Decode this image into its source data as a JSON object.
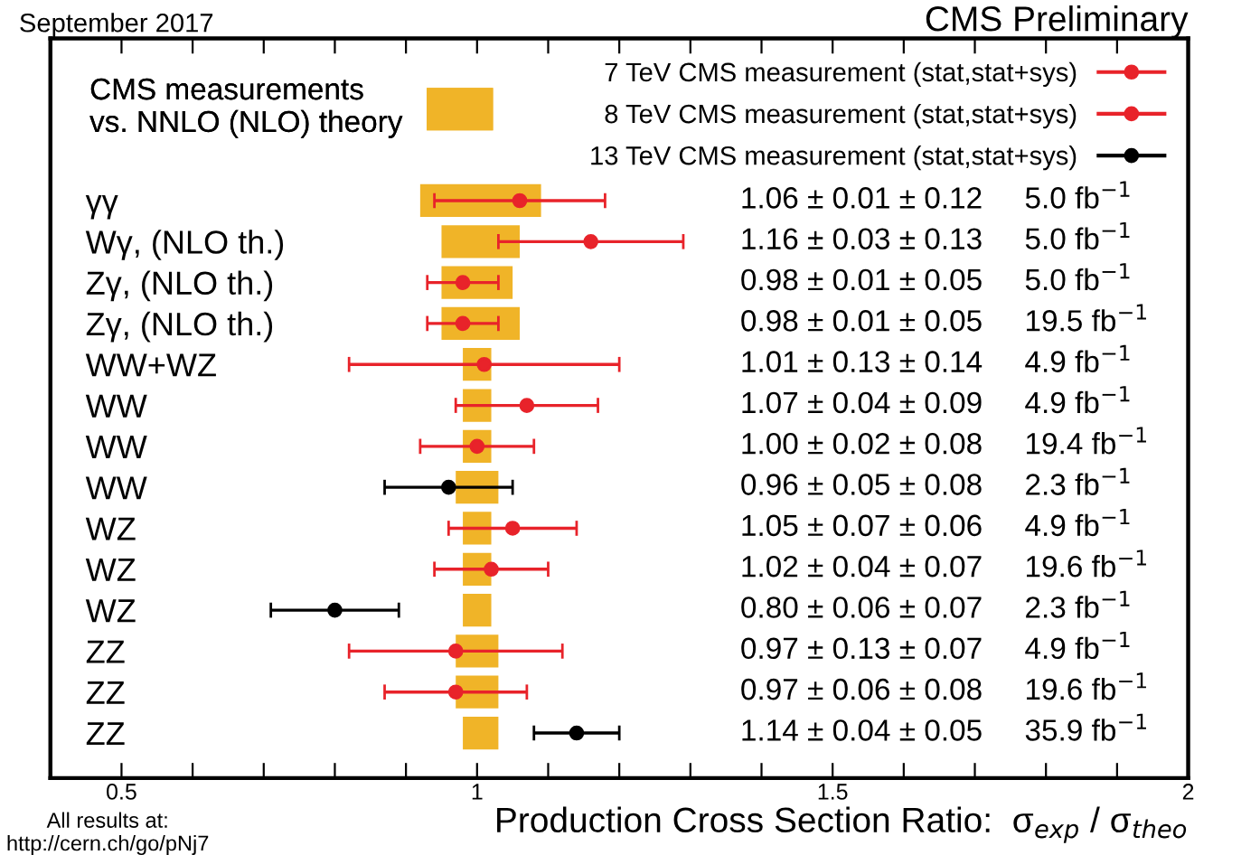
{
  "chart_data": {
    "type": "scatter",
    "orientation": "horizontal",
    "title": "CMS Preliminary",
    "xlabel": "Production Cross Section Ratio:  σ$_{exp}$ / σ$_{theo}$",
    "annotations": [
      "September 2017",
      "All results at:\nhttp://cern.ch/go/pNj7",
      "1.06 ± 0.01 ± 0.12     5.0 fb$^{−1}$",
      "1.16 ± 0.03 ± 0.13     5.0 fb$^{−1}$",
      "0.98 ± 0.01 ± 0.05     5.0 fb$^{−1}$",
      "0.98 ± 0.01 ± 0.05     19.5 fb$^{−1}$",
      "1.01 ± 0.13 ± 0.14     4.9 fb$^{−1}$",
      "1.07 ± 0.04 ± 0.09     4.9 fb$^{−1}$",
      "1.00 ± 0.02 ± 0.08     19.4 fb$^{−1}$",
      "0.96 ± 0.05 ± 0.08     2.3 fb$^{−1}$",
      "1.05 ± 0.07 ± 0.06     4.9 fb$^{−1}$",
      "1.02 ± 0.04 ± 0.07     19.6 fb$^{−1}$",
      "0.80 ± 0.06 ± 0.07     2.3 fb$^{−1}$",
      "0.97 ± 0.13 ± 0.07     4.9 fb$^{−1}$",
      "0.97 ± 0.06 ± 0.08     19.6 fb$^{−1}$",
      "1.14 ± 0.04 ± 0.05     35.9 fb$^{−1}$"
    ],
    "categories": [
      "γγ",
      "Wγ, (NLO th.)",
      "Zγ, (NLO th.)",
      "Zγ, (NLO th.)",
      "WW+WZ",
      "WW",
      "WW",
      "WW",
      "WZ",
      "WZ",
      "WZ",
      "ZZ",
      "ZZ",
      "ZZ"
    ],
    "xlim": [
      0.4,
      2.0
    ],
    "xticks": [
      {
        "value": 0.5,
        "label": "0.5"
      },
      {
        "value": 0.6,
        "label": null
      },
      {
        "value": 0.7,
        "label": null
      },
      {
        "value": 0.8,
        "label": null
      },
      {
        "value": 0.9,
        "label": null
      },
      1,
      {
        "value": 1.1,
        "label": null
      },
      {
        "value": 1.2,
        "label": null
      },
      {
        "value": 1.3,
        "label": null
      },
      {
        "value": 1.4,
        "label": null
      },
      {
        "value": 1.5,
        "label": "1.5"
      },
      {
        "value": 1.6,
        "label": null
      },
      {
        "value": 1.7,
        "label": null
      },
      {
        "value": 1.8,
        "label": null
      },
      {
        "value": 1.9,
        "label": null
      },
      2
    ],
    "grid": false,
    "legend": "top right",
    "marker": "circle",
    "series": [
      {
        "type": "bar",
        "name": "CMS measurements\nvs. NNLO (NLO) theory",
        "color": "#f0b428",
        "base": [
          0.92,
          0.95,
          0.95,
          0.95,
          0.98,
          0.98,
          0.98,
          0.97,
          0.98,
          0.98,
          0.98,
          0.97,
          0.97,
          0.98
        ],
        "values": [
          0.17,
          0.11,
          0.1,
          0.11,
          0.04,
          0.04,
          0.04,
          0.06,
          0.04,
          0.04,
          0.04,
          0.06,
          0.06,
          0.05
        ]
      },
      {
        "name": "7 TeV CMS measurement (stat,stat+sys)",
        "color": "#e8232a",
        "values": [
          1.06,
          1.16,
          0.98,
          null,
          1.01,
          1.07,
          null,
          null,
          1.05,
          null,
          null,
          0.97,
          null,
          null
        ],
        "errors": [
          0.12,
          0.13,
          0.05,
          null,
          0.19,
          0.1,
          null,
          null,
          0.09,
          null,
          null,
          0.15,
          null,
          null
        ]
      },
      {
        "name": "8 TeV CMS measurement (stat,stat+sys)",
        "color": "#e8232a",
        "values": [
          null,
          null,
          null,
          0.98,
          null,
          null,
          1.0,
          null,
          null,
          1.02,
          null,
          null,
          0.97,
          null
        ],
        "errors": [
          null,
          null,
          null,
          0.05,
          null,
          null,
          0.08,
          null,
          null,
          0.08,
          null,
          null,
          0.1,
          null
        ]
      },
      {
        "name": "13 TeV CMS measurement (stat,stat+sys)",
        "color": "#000000",
        "values": [
          null,
          null,
          null,
          null,
          null,
          null,
          null,
          0.96,
          null,
          null,
          0.8,
          null,
          null,
          1.14
        ],
        "errors": [
          null,
          null,
          null,
          null,
          null,
          null,
          null,
          0.09,
          null,
          null,
          0.09,
          null,
          null,
          0.06
        ]
      }
    ]
  }
}
